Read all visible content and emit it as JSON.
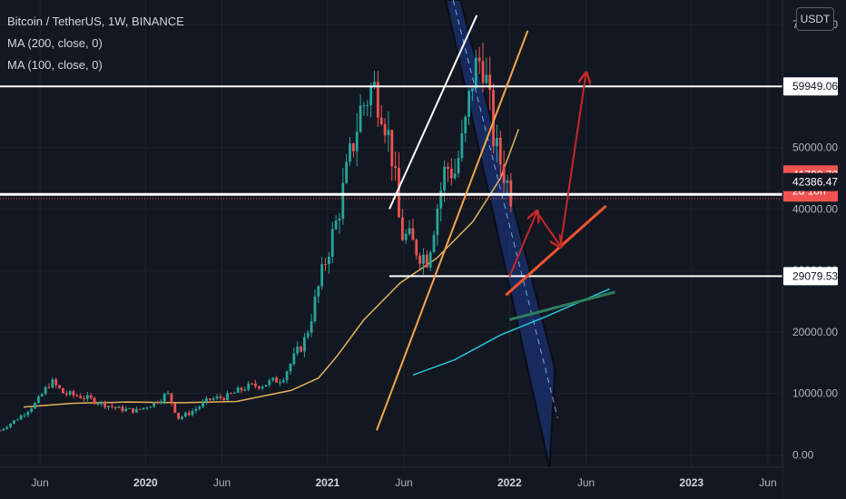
{
  "legend": {
    "symbol": "Bitcoin / TetherUS, 1W, BINANCE",
    "ma1": "MA (200, close, 0)",
    "ma2": "MA (100, close, 0)"
  },
  "currency": "USDT",
  "colors": {
    "background": "#131722",
    "up": "#26a69a",
    "down": "#ef5350",
    "ma200": "#26c6da",
    "ma100": "#e0b35a",
    "channel": "#1e3a8a",
    "trend_orange": "#f7a54a",
    "trend_white": "#ffffff",
    "green_line": "#2e7d5b",
    "arrow_red": "#c62828",
    "current_price_bg": "#ef5350"
  },
  "chart_data": {
    "type": "candlestick",
    "symbol": "Bitcoin / TetherUS",
    "interval": "1W",
    "exchange": "BINANCE",
    "y_axis": {
      "unit": "USDT",
      "ticks": [
        "70000.00",
        "60000.00",
        "50000.00",
        "40000.00",
        "30000.00",
        "20000.00",
        "10000.00",
        "0.00"
      ],
      "ylim": [
        -2000,
        74000
      ]
    },
    "x_axis": {
      "ticks": [
        {
          "label": "Jun",
          "time": 2019.42,
          "bold": false
        },
        {
          "label": "2020",
          "time": 2020.0,
          "bold": true
        },
        {
          "label": "Jun",
          "time": 2020.42,
          "bold": false
        },
        {
          "label": "2021",
          "time": 2021.0,
          "bold": true
        },
        {
          "label": "Jun",
          "time": 2021.42,
          "bold": false
        },
        {
          "label": "2022",
          "time": 2022.0,
          "bold": true
        },
        {
          "label": "Jun",
          "time": 2022.42,
          "bold": false
        },
        {
          "label": "2023",
          "time": 2023.0,
          "bold": true
        },
        {
          "label": "Jun",
          "time": 2023.42,
          "bold": false
        }
      ],
      "xlim": [
        2019.2,
        2023.5
      ]
    },
    "price_levels": [
      {
        "label": "59949.06",
        "value": 59949.06
      },
      {
        "label": "42386.47",
        "value": 42386.47
      },
      {
        "label": "29079.53",
        "value": 29079.53
      }
    ],
    "current_price": {
      "label": "41700.70",
      "countdown": "2d 10h",
      "value": 41700.7
    },
    "close_path": [
      [
        2019.2,
        4000
      ],
      [
        2019.3,
        6000
      ],
      [
        2019.4,
        8500
      ],
      [
        2019.48,
        12000
      ],
      [
        2019.55,
        10000
      ],
      [
        2019.65,
        9500
      ],
      [
        2019.75,
        8500
      ],
      [
        2019.85,
        7500
      ],
      [
        2019.95,
        7200
      ],
      [
        2020.05,
        8500
      ],
      [
        2020.12,
        10000
      ],
      [
        2020.18,
        6000
      ],
      [
        2020.25,
        7000
      ],
      [
        2020.35,
        9000
      ],
      [
        2020.45,
        9500
      ],
      [
        2020.55,
        11000
      ],
      [
        2020.65,
        11500
      ],
      [
        2020.75,
        12500
      ],
      [
        2020.82,
        16000
      ],
      [
        2020.88,
        19000
      ],
      [
        2020.94,
        26000
      ],
      [
        2021.0,
        33000
      ],
      [
        2021.05,
        38000
      ],
      [
        2021.12,
        48000
      ],
      [
        2021.18,
        56000
      ],
      [
        2021.25,
        60000
      ],
      [
        2021.3,
        57000
      ],
      [
        2021.36,
        48000
      ],
      [
        2021.4,
        36000
      ],
      [
        2021.45,
        35000
      ],
      [
        2021.5,
        33000
      ],
      [
        2021.55,
        32000
      ],
      [
        2021.6,
        40000
      ],
      [
        2021.65,
        47000
      ],
      [
        2021.7,
        46000
      ],
      [
        2021.75,
        52000
      ],
      [
        2021.8,
        62000
      ],
      [
        2021.85,
        65000
      ],
      [
        2021.88,
        59000
      ],
      [
        2021.92,
        50000
      ],
      [
        2021.96,
        47000
      ],
      [
        2022.0,
        43000
      ],
      [
        2022.02,
        41700
      ]
    ],
    "ma100": [
      [
        2019.33,
        7800
      ],
      [
        2019.6,
        8400
      ],
      [
        2019.9,
        8600
      ],
      [
        2020.2,
        8500
      ],
      [
        2020.5,
        8700
      ],
      [
        2020.8,
        10500
      ],
      [
        2020.95,
        12500
      ],
      [
        2021.05,
        16000
      ],
      [
        2021.2,
        22000
      ],
      [
        2021.4,
        28000
      ],
      [
        2021.6,
        32000
      ],
      [
        2021.8,
        38000
      ],
      [
        2021.95,
        45000
      ],
      [
        2022.05,
        53000
      ]
    ],
    "ma200": [
      [
        2021.47,
        13000
      ],
      [
        2021.7,
        15500
      ],
      [
        2021.95,
        19500
      ],
      [
        2022.2,
        22500
      ],
      [
        2022.55,
        27000
      ]
    ],
    "drawings": {
      "channel": {
        "top_left": [
          2021.65,
          74000
        ],
        "top_right": [
          2021.73,
          74000
        ],
        "bottom_left": [
          2022.22,
          -2000
        ],
        "bottom_right": [
          2022.25,
          14000
        ]
      },
      "white_trend": [
        [
          2021.34,
          40000
        ],
        [
          2021.82,
          71500
        ]
      ],
      "orange_trend": [
        [
          2021.27,
          4000
        ],
        [
          2022.1,
          69000
        ]
      ],
      "red_trend": [
        [
          2021.98,
          26000
        ],
        [
          2022.53,
          40500
        ]
      ],
      "green_trend": [
        [
          2022.0,
          22000
        ],
        [
          2022.58,
          26500
        ]
      ],
      "arrows": [
        [
          [
            2022.0,
            29000
          ],
          [
            2022.15,
            39500
          ]
        ],
        [
          [
            2022.15,
            39500
          ],
          [
            2022.28,
            34000
          ]
        ],
        [
          [
            2022.28,
            34000
          ],
          [
            2022.42,
            62000
          ]
        ]
      ]
    }
  }
}
